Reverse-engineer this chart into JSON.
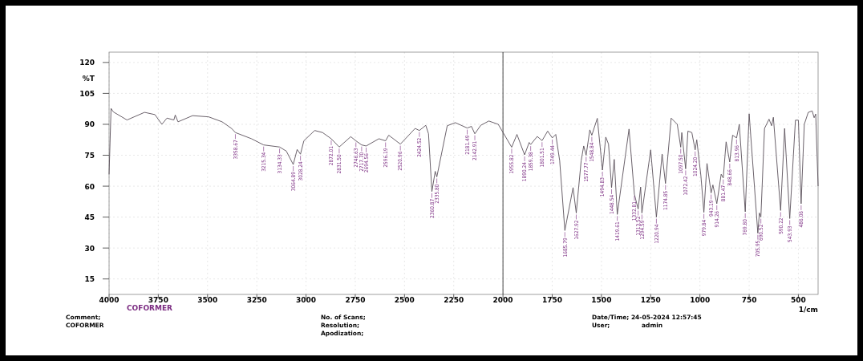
{
  "chart_data": {
    "type": "line",
    "xlabel": "1/cm",
    "ylabel": "%T",
    "xlim": [
      4000,
      400
    ],
    "ylim": [
      7.5,
      125
    ],
    "xticks": [
      4000,
      3750,
      3500,
      3250,
      3000,
      2750,
      2500,
      2250,
      2000,
      1750,
      1500,
      1250,
      1000,
      750,
      500
    ],
    "yticks": [
      15,
      30,
      45,
      60,
      75,
      90,
      105,
      120
    ],
    "grid": true,
    "ref_lines": [
      {
        "axis": "x",
        "value": 2000,
        "color": "#333333"
      }
    ],
    "series": [
      {
        "color": "#5a505a",
        "x": [
          4000,
          3990,
          3978,
          3909,
          3820,
          3767,
          3732,
          3706,
          3671,
          3664,
          3650,
          3576,
          3494,
          3426,
          3378,
          3358.67,
          3277,
          3215.34,
          3134.33,
          3100,
          3064.89,
          3045,
          3028.24,
          3011,
          2956,
          2916,
          2872.01,
          2831.5,
          2773,
          2746.63,
          2717.7,
          2694.56,
          2630,
          2596.19,
          2580,
          2520.96,
          2446,
          2424.52,
          2392,
          2378,
          2360.87,
          2344,
          2335.8,
          2283,
          2242,
          2181.49,
          2160,
          2142.91,
          2113,
          2072,
          2024,
          1955.82,
          1929,
          1890.24,
          1867,
          1859.38,
          1826,
          1801.51,
          1773,
          1749.44,
          1732,
          1712,
          1685.79,
          1644,
          1627.92,
          1603,
          1590,
          1577.77,
          1559,
          1548.84,
          1521,
          1494.83,
          1478,
          1464,
          1448.54,
          1435,
          1419.61,
          1360,
          1332.81,
          1313.52,
          1301,
          1294.59,
          1250,
          1220.94,
          1192,
          1174.85,
          1146,
          1115,
          1097.5,
          1092,
          1072.42,
          1061,
          1041,
          1024.2,
          1016,
          995,
          979.84,
          964,
          943.19,
          934,
          914.26,
          892,
          881.47,
          867,
          848.66,
          834,
          813.96,
          800,
          769.8,
          750,
          705.95,
          698,
          690.52,
          672,
          649,
          636,
          627,
          590.22,
          570,
          543.93,
          515,
          500,
          486.06,
          470,
          450,
          430,
          420,
          412,
          400
        ],
        "values": [
          65.7,
          97.7,
          96,
          92.1,
          95.8,
          94.7,
          90,
          93,
          92.1,
          94.5,
          91.2,
          94.2,
          93.6,
          91.2,
          88,
          86,
          83,
          80,
          79,
          77,
          70.5,
          77.8,
          75.5,
          82,
          87,
          86,
          83,
          79,
          84,
          82,
          80,
          79.5,
          83,
          82,
          84.7,
          80.4,
          88,
          87,
          89.5,
          85.4,
          57.4,
          67.2,
          64.5,
          89.3,
          90.8,
          88.2,
          89,
          85.4,
          89.5,
          91.6,
          90,
          78.9,
          85.1,
          75.2,
          81.2,
          80.2,
          84.1,
          82.1,
          86.7,
          83.4,
          85.1,
          72.3,
          38.5,
          59.3,
          47,
          72.3,
          79.5,
          75,
          87.3,
          84.7,
          92.9,
          67.8,
          83.8,
          80.4,
          59.3,
          73,
          46.3,
          87.7,
          56.1,
          48.9,
          59.6,
          47,
          77.6,
          45,
          75.6,
          61.3,
          93,
          90,
          78.9,
          86,
          68.4,
          86.7,
          86,
          77.6,
          82.5,
          65,
          47.3,
          71,
          56.7,
          60.6,
          51.5,
          65.8,
          64,
          81.5,
          71.7,
          84.7,
          83.4,
          90,
          47.6,
          95.1,
          37.2,
          47,
          45,
          88,
          92.5,
          89.3,
          93.4,
          48.2,
          88,
          44.3,
          92,
          92,
          51.5,
          90,
          95.8,
          96.5,
          93.2,
          95,
          60
        ]
      }
    ],
    "annotations": [
      "COFORMER",
      "Comment;",
      "COFORMER",
      "No. of Scans;",
      "Resolution;",
      "Apodization;",
      "Date/Time; 24-05-2024 12:57:45",
      "User;",
      "admin",
      {
        "text": "3358.67",
        "x": 3358.67,
        "y": 86
      },
      {
        "text": "3215.34",
        "x": 3215.34,
        "y": 80
      },
      {
        "text": "3134.33",
        "x": 3134.33,
        "y": 79
      },
      {
        "text": "3064.89",
        "x": 3064.89,
        "y": 70.5
      },
      {
        "text": "3028.24",
        "x": 3028.24,
        "y": 75.5
      },
      {
        "text": "2872.01",
        "x": 2872.01,
        "y": 83
      },
      {
        "text": "2831.50",
        "x": 2831.5,
        "y": 79
      },
      {
        "text": "2746.63",
        "x": 2746.63,
        "y": 82
      },
      {
        "text": "2717.70",
        "x": 2717.7,
        "y": 80
      },
      {
        "text": "2694.56",
        "x": 2694.56,
        "y": 79.5
      },
      {
        "text": "2596.19",
        "x": 2596.19,
        "y": 82
      },
      {
        "text": "2520.96",
        "x": 2520.96,
        "y": 80.4
      },
      {
        "text": "2424.52",
        "x": 2424.52,
        "y": 87
      },
      {
        "text": "2360.87",
        "x": 2360.87,
        "y": 57.4
      },
      {
        "text": "2335.80",
        "x": 2335.8,
        "y": 64.5
      },
      {
        "text": "2181.49",
        "x": 2181.49,
        "y": 88.2
      },
      {
        "text": "2142.91",
        "x": 2142.91,
        "y": 85.4
      },
      {
        "text": "1955.82",
        "x": 1955.82,
        "y": 78.9
      },
      {
        "text": "1890.24",
        "x": 1890.24,
        "y": 75.2
      },
      {
        "text": "1859.38",
        "x": 1859.38,
        "y": 80.2
      },
      {
        "text": "1801.51",
        "x": 1801.51,
        "y": 82.1
      },
      {
        "text": "1749.44",
        "x": 1749.44,
        "y": 83.4
      },
      {
        "text": "1685.79",
        "x": 1685.79,
        "y": 38.5
      },
      {
        "text": "1627.92",
        "x": 1627.92,
        "y": 47
      },
      {
        "text": "1577.77",
        "x": 1577.77,
        "y": 75
      },
      {
        "text": "1548.84",
        "x": 1548.84,
        "y": 84.7
      },
      {
        "text": "1494.83",
        "x": 1494.83,
        "y": 67.8
      },
      {
        "text": "1448.54",
        "x": 1448.54,
        "y": 59.3
      },
      {
        "text": "1419.61",
        "x": 1419.61,
        "y": 46.3
      },
      {
        "text": "1332.81",
        "x": 1332.81,
        "y": 56.1
      },
      {
        "text": "1313.52",
        "x": 1313.52,
        "y": 48.9
      },
      {
        "text": "1294.59",
        "x": 1294.59,
        "y": 47
      },
      {
        "text": "1220.94",
        "x": 1220.94,
        "y": 45
      },
      {
        "text": "1174.85",
        "x": 1174.85,
        "y": 61.3
      },
      {
        "text": "1097.50",
        "x": 1097.5,
        "y": 78.9
      },
      {
        "text": "1072.42",
        "x": 1072.42,
        "y": 68.4
      },
      {
        "text": "1024.20",
        "x": 1024.2,
        "y": 77.6
      },
      {
        "text": "979.84",
        "x": 979.84,
        "y": 47.3
      },
      {
        "text": "943.19",
        "x": 943.19,
        "y": 56.7
      },
      {
        "text": "914.26",
        "x": 914.26,
        "y": 51.5
      },
      {
        "text": "881.47",
        "x": 881.47,
        "y": 64
      },
      {
        "text": "848.66",
        "x": 848.66,
        "y": 71.7
      },
      {
        "text": "813.96",
        "x": 813.96,
        "y": 83.4
      },
      {
        "text": "769.80",
        "x": 769.8,
        "y": 47.6
      },
      {
        "text": "705.95",
        "x": 705.95,
        "y": 37.2
      },
      {
        "text": "690.52",
        "x": 690.52,
        "y": 45
      },
      {
        "text": "590.22",
        "x": 590.22,
        "y": 48.2
      },
      {
        "text": "543.93",
        "x": 543.93,
        "y": 44.3
      },
      {
        "text": "486.06",
        "x": 486.06,
        "y": 51.5
      }
    ]
  }
}
